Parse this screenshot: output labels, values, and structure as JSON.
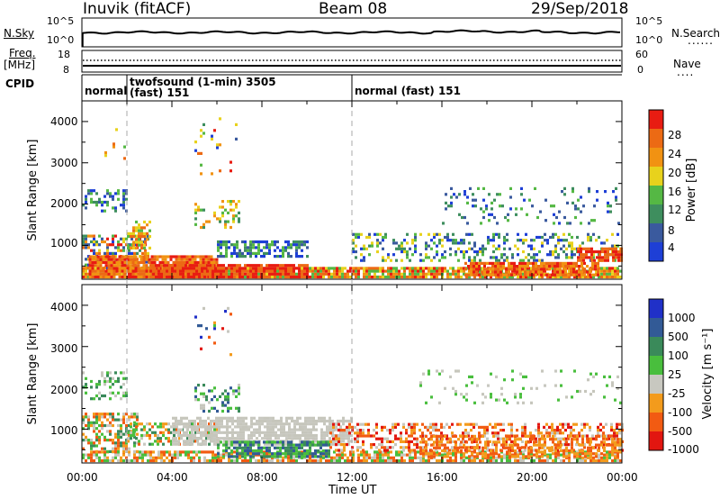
{
  "header": {
    "station": "Inuvik (fitACF)",
    "beam": "Beam 08",
    "date": "29/Sep/2018"
  },
  "side_labels": {
    "nsky": "N.Sky",
    "nsearch": "N.Search",
    "nsearch_marker": "......",
    "freq_top": "Freq.",
    "freq_unit": "[MHz]",
    "nave": "Nave",
    "nave_marker": "....",
    "cpid": "CPID"
  },
  "sky_axis": {
    "left_ticks": [
      "10^5",
      "10^0"
    ],
    "right_ticks": [
      "10^5",
      "10^0"
    ]
  },
  "freq_axis": {
    "left_ticks": [
      "18",
      "8"
    ],
    "right_ticks": [
      "60",
      "0"
    ]
  },
  "cpid_segments": [
    {
      "text1": "normal",
      "text2": ""
    },
    {
      "text1": "twofsound (1-min) 3505",
      "text2": "(fast) 151"
    },
    {
      "text1": "normal (fast) 151",
      "text2": ""
    }
  ],
  "x_axis": {
    "title": "Time UT",
    "ticks": [
      "00:00",
      "04:00",
      "08:00",
      "12:00",
      "16:00",
      "20:00",
      "00:00"
    ]
  },
  "y_axis": {
    "title": "Slant Range [km]",
    "ticks": [
      "1000",
      "2000",
      "3000",
      "4000"
    ]
  },
  "colors": {
    "power": [
      "#1e3fd6",
      "#3a5a9e",
      "#3e8e5e",
      "#55b844",
      "#e8d21c",
      "#f19212",
      "#ec6a14",
      "#e81c12"
    ],
    "velocity": [
      "#e21610",
      "#f25b12",
      "#f39b1c",
      "#c8c8c0",
      "#49be3d",
      "#3a8a5a",
      "#325a96",
      "#2030c8"
    ],
    "grey": "#c6c6bc"
  },
  "power_colorbar": {
    "label": "Power [dB]",
    "ticks": [
      "4",
      "8",
      "12",
      "16",
      "20",
      "24",
      "28"
    ]
  },
  "velocity_colorbar": {
    "label": "Velocity [m s⁻¹]",
    "ticks": [
      "1000",
      "500",
      "100",
      "25",
      "-25",
      "-100",
      "-500",
      "-1000"
    ]
  },
  "chart_data": [
    {
      "type": "heatmap",
      "title": "Power",
      "x": "Time UT 00:00-24:00",
      "y": "Slant Range [km]",
      "ylim": [
        180,
        4500
      ],
      "scale": [
        4,
        8,
        12,
        16,
        20,
        24,
        28
      ],
      "unit": "dB"
    },
    {
      "type": "heatmap",
      "title": "Velocity",
      "x": "Time UT 00:00-24:00",
      "y": "Slant Range [km]",
      "ylim": [
        180,
        4500
      ],
      "scale": [
        -1000,
        -500,
        -100,
        -25,
        25,
        100,
        500,
        1000
      ],
      "unit": "m s-1"
    }
  ]
}
